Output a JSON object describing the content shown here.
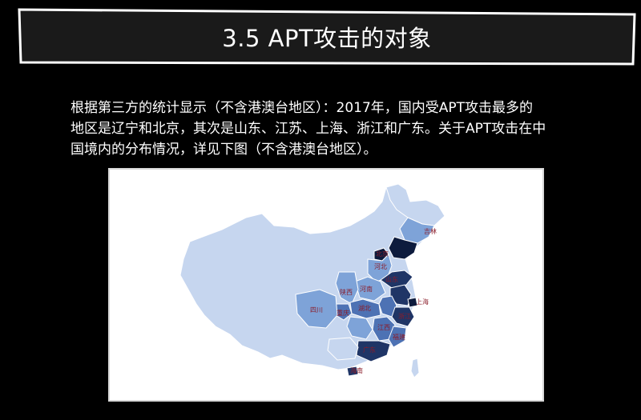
{
  "slide": {
    "title": "3.5  APT攻击的对象",
    "intro_lines": [
      "根据第三方的统计显示（不含港澳台地区）：2017年，国内受APT攻击最多的",
      "地区是辽宁和北京，其次是山东、江苏、上海、浙江和广东。关于APT攻击在中",
      "国境内的分布情况，详见下图（不含港澳台地区）。"
    ]
  },
  "map": {
    "colors": {
      "light": "#c6d6ef",
      "mid": "#7ea3d8",
      "medium_dark": "#4d72b4",
      "dark": "#1f3566",
      "darkest": "#0d1b3d"
    },
    "labels": {
      "jilin": "吉林",
      "beijing": "北京",
      "hebei": "河北",
      "shandong": "山东",
      "shaanxi": "陕西",
      "henan": "河南",
      "hubei": "湖北",
      "shanghai": "上海",
      "sichuan": "四川",
      "chongqing": "重庆",
      "jiangxi": "江西",
      "zhejiang": "浙江",
      "fujian": "福建",
      "guangdong": "广东",
      "hainan": "海南"
    }
  }
}
